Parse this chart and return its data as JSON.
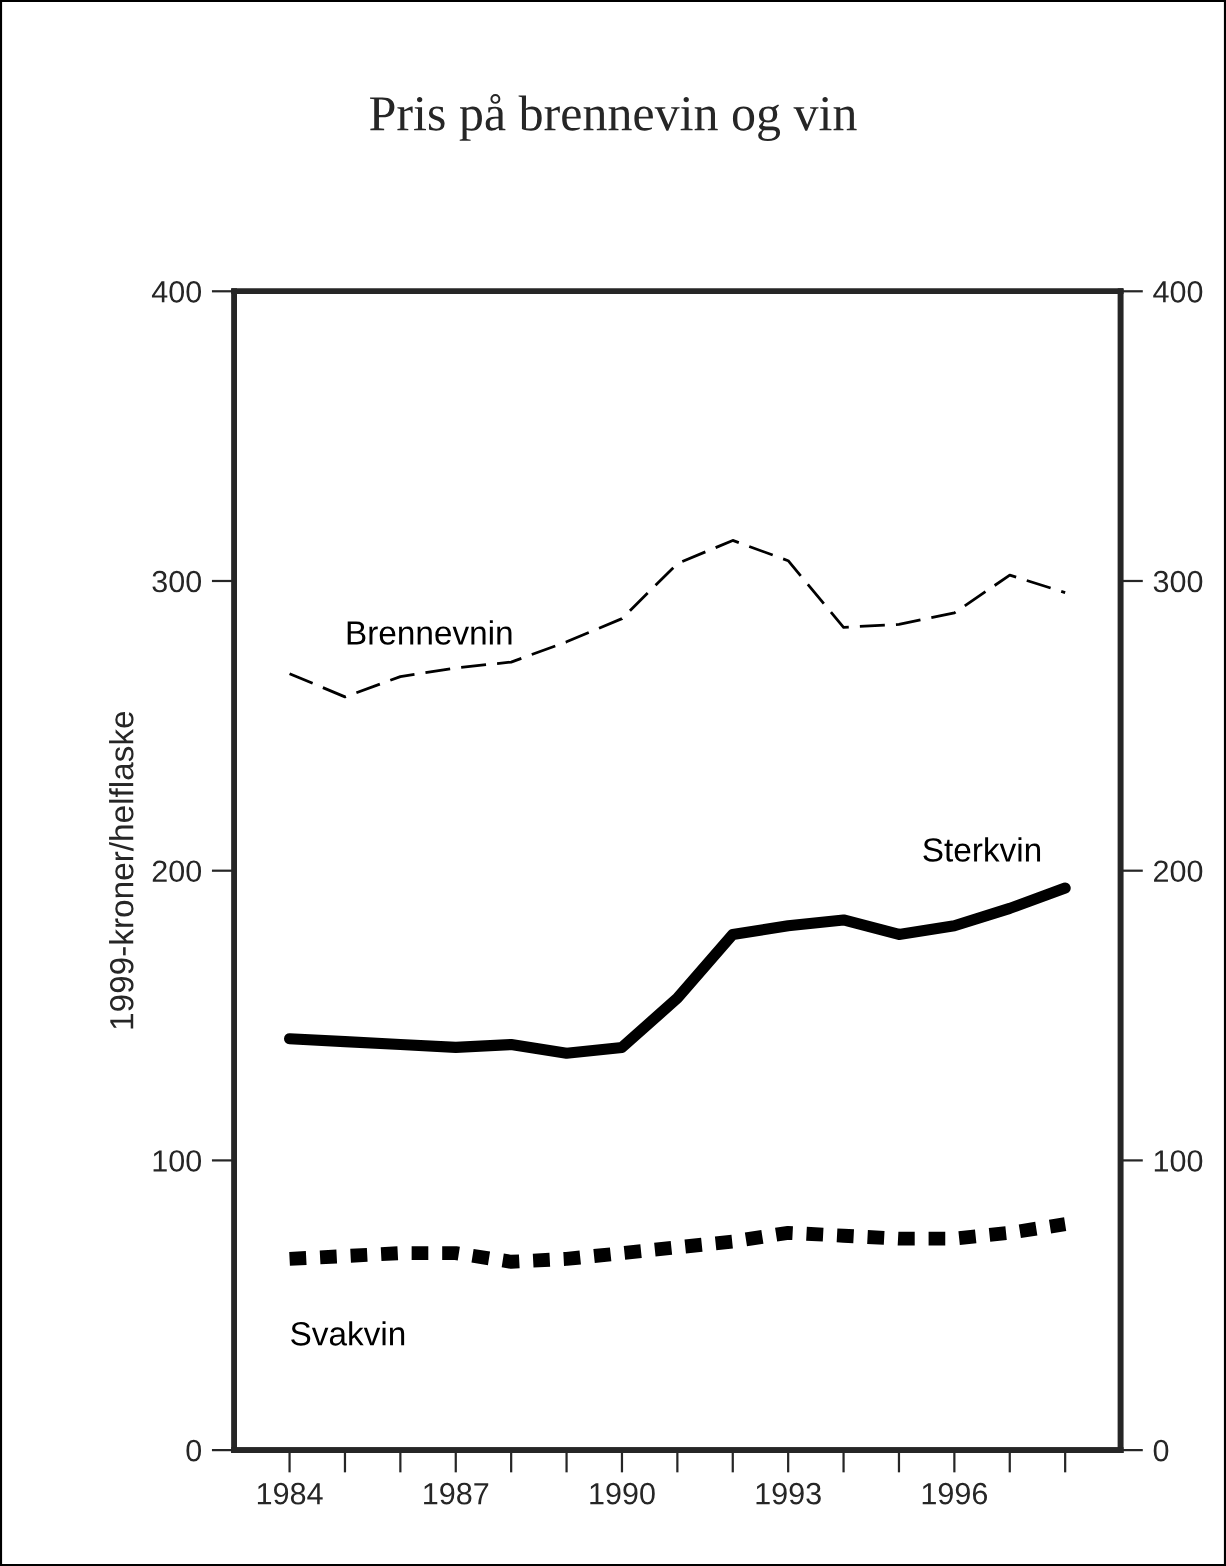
{
  "chart_data": {
    "type": "line",
    "title": "Pris på brennevin og vin",
    "ylabel": "1999-kroner/helflaske",
    "x": [
      1984,
      1985,
      1986,
      1987,
      1988,
      1989,
      1990,
      1991,
      1992,
      1993,
      1994,
      1995,
      1996,
      1997,
      1998
    ],
    "series": [
      {
        "name": "Brennevnin",
        "color": "#000000",
        "line_style": "dashed",
        "values": [
          268,
          260,
          267,
          270,
          272,
          279,
          287,
          306,
          314,
          307,
          284,
          285,
          289,
          302,
          296
        ]
      },
      {
        "name": "Sterkvin",
        "color": "#000000",
        "line_style": "solid",
        "values": [
          142,
          141,
          140,
          139,
          140,
          137,
          139,
          156,
          178,
          181,
          183,
          178,
          181,
          187,
          194
        ]
      },
      {
        "name": "Svakvin",
        "color": "#000000",
        "line_style": "dotted",
        "values": [
          66,
          67,
          68,
          68,
          65,
          66,
          68,
          70,
          72,
          75,
          74,
          73,
          73,
          75,
          78
        ]
      }
    ],
    "xlim": [
      1983,
      1999
    ],
    "xticks": [
      1984,
      {
        "value": 1985,
        "label": null
      },
      {
        "value": 1986,
        "label": null
      },
      1987,
      {
        "value": 1988,
        "label": null
      },
      {
        "value": 1989,
        "label": null
      },
      1990,
      {
        "value": 1991,
        "label": null
      },
      {
        "value": 1992,
        "label": null
      },
      1993,
      {
        "value": 1994,
        "label": null
      },
      {
        "value": 1995,
        "label": null
      },
      1996,
      {
        "value": 1997,
        "label": null
      },
      {
        "value": 1998,
        "label": null
      }
    ],
    "ylim": [
      0,
      400
    ],
    "yticks": [
      0,
      100,
      200,
      300,
      400
    ],
    "y2lim": [
      0,
      400
    ],
    "y2ticks": [
      0,
      100,
      200,
      300,
      400
    ],
    "grid": false,
    "legend": false
  }
}
